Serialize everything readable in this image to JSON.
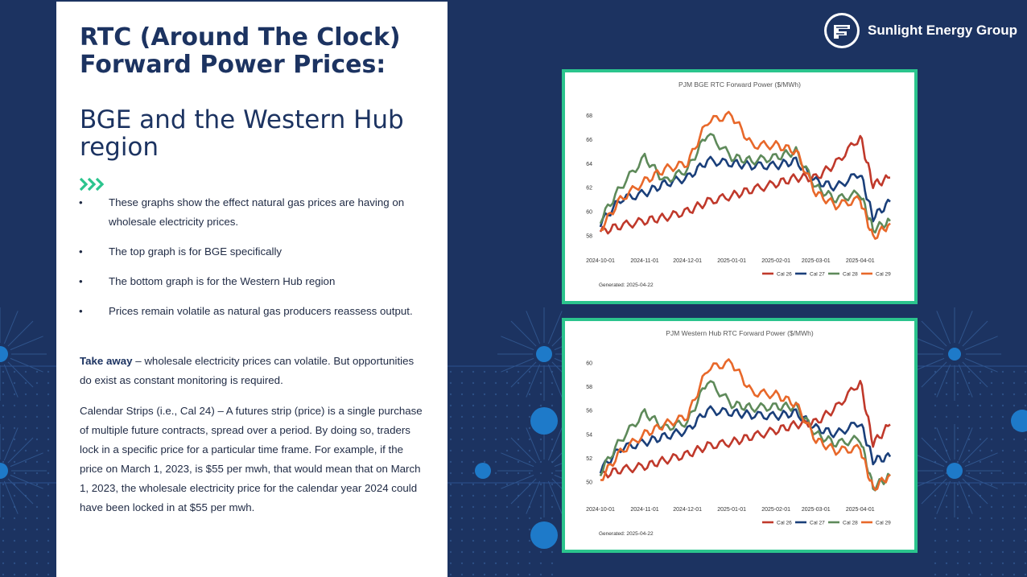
{
  "slide": {
    "title": "RTC (Around The Clock) Forward Power Prices:",
    "subtitle": "BGE and the Western Hub region",
    "chevrons_icon": "triple-chevron-right-icon",
    "bullet_glyph": "•",
    "bullets": [
      "These graphs show the effect natural gas prices are having on wholesale electricity prices.",
      "The top graph is for BGE specifically",
      "The bottom graph is for the Western Hub region",
      "Prices remain volatile as natural gas producers reassess output."
    ],
    "takeaway_label": "Take away",
    "takeaway_text": " – wholesale electricity prices can volatile. But opportunities do exist as constant monitoring is required.",
    "calendar_text": "Calendar Strips (i.e., Cal 24) – A futures strip (price) is a single purchase of multiple future contracts, spread over a period. By doing so, traders lock in a specific price for a particular time frame. For example, if the price on March 1, 2023, is $55 per mwh, that would mean that on March 1, 2023, the wholesale electricity price for the calendar year 2024 could have been locked in at $55 per mwh."
  },
  "logo": {
    "name": "Sunlight Energy Group",
    "icon": "sunlight-energy-logo-icon"
  },
  "colors": {
    "background": "#1c3361",
    "accent_green": "#2bc48d",
    "cal26": "#c0392b",
    "cal27": "#1a3f7a",
    "cal28": "#5e8a5a",
    "cal29": "#e8682a"
  },
  "chart_data": [
    {
      "type": "line",
      "title": "PJM BGE RTC Forward Power ($/MWh)",
      "footer": "Generated: 2025-04-22",
      "x_ticks": [
        "2024-10-01",
        "2024-11-01",
        "2024-12-01",
        "2025-01-01",
        "2025-02-01",
        "2025-03-01",
        "2025-04-01"
      ],
      "y_ticks": [
        58,
        60,
        62,
        64,
        66,
        68
      ],
      "ylim": [
        57.5,
        68.6
      ],
      "x": [
        "2024-10-01",
        "2024-10-15",
        "2024-11-01",
        "2024-11-15",
        "2024-12-01",
        "2024-12-15",
        "2025-01-01",
        "2025-01-15",
        "2025-02-01",
        "2025-02-15",
        "2025-03-01",
        "2025-03-15",
        "2025-04-01",
        "2025-04-10",
        "2025-04-22"
      ],
      "series": [
        {
          "name": "Cal 26",
          "values": [
            58.3,
            58.8,
            59.2,
            59.5,
            60.0,
            60.8,
            61.3,
            61.8,
            62.3,
            62.8,
            62.8,
            64.0,
            66.2,
            62.2,
            62.8
          ]
        },
        {
          "name": "Cal 27",
          "values": [
            59.0,
            61.0,
            61.5,
            62.3,
            62.8,
            64.2,
            64.0,
            63.8,
            63.8,
            64.2,
            62.5,
            62.0,
            63.2,
            59.5,
            60.8
          ]
        },
        {
          "name": "Cal 28",
          "values": [
            59.3,
            62.0,
            64.5,
            62.5,
            63.5,
            66.5,
            64.5,
            64.2,
            64.5,
            65.0,
            62.0,
            61.0,
            61.5,
            58.5,
            59.2
          ]
        },
        {
          "name": "Cal 29",
          "values": [
            58.5,
            61.0,
            62.5,
            63.5,
            64.0,
            67.5,
            68.0,
            65.5,
            65.5,
            65.0,
            61.5,
            60.5,
            61.0,
            57.8,
            59.0
          ]
        }
      ],
      "legend": [
        "Cal 26",
        "Cal 27",
        "Cal 28",
        "Cal 29"
      ],
      "legend_position": "bottom-right"
    },
    {
      "type": "line",
      "title": "PJM Western Hub RTC Forward Power ($/MWh)",
      "footer": "Generated: 2025-04-22",
      "x_ticks": [
        "2024-10-01",
        "2024-11-01",
        "2024-12-01",
        "2025-01-01",
        "2025-02-01",
        "2025-03-01",
        "2025-04-01"
      ],
      "y_ticks": [
        50,
        52,
        54,
        56,
        58,
        60
      ],
      "ylim": [
        49.3,
        60.5
      ],
      "x": [
        "2024-10-01",
        "2024-10-15",
        "2024-11-01",
        "2024-11-15",
        "2024-12-01",
        "2024-12-15",
        "2025-01-01",
        "2025-01-15",
        "2025-02-01",
        "2025-02-15",
        "2025-03-01",
        "2025-03-15",
        "2025-04-01",
        "2025-04-10",
        "2025-04-22"
      ],
      "series": [
        {
          "name": "Cal 26",
          "values": [
            50.5,
            51.0,
            51.3,
            51.8,
            52.3,
            53.0,
            53.3,
            53.8,
            54.3,
            54.8,
            55.0,
            56.2,
            58.4,
            53.2,
            54.8
          ]
        },
        {
          "name": "Cal 27",
          "values": [
            51.0,
            52.8,
            53.3,
            53.8,
            54.3,
            56.0,
            55.8,
            55.6,
            55.5,
            55.8,
            54.5,
            54.0,
            55.0,
            51.8,
            52.1
          ]
        },
        {
          "name": "Cal 28",
          "values": [
            50.8,
            53.5,
            55.8,
            54.5,
            55.0,
            58.5,
            56.5,
            56.2,
            56.3,
            56.3,
            54.0,
            53.2,
            53.6,
            49.5,
            50.5
          ]
        },
        {
          "name": "Cal 29",
          "values": [
            50.2,
            52.5,
            54.0,
            54.8,
            55.5,
            59.5,
            60.0,
            57.5,
            57.3,
            56.5,
            53.5,
            52.6,
            52.8,
            49.4,
            50.6
          ]
        }
      ],
      "legend": [
        "Cal 26",
        "Cal 27",
        "Cal 28",
        "Cal 29"
      ],
      "legend_position": "bottom-right"
    }
  ]
}
